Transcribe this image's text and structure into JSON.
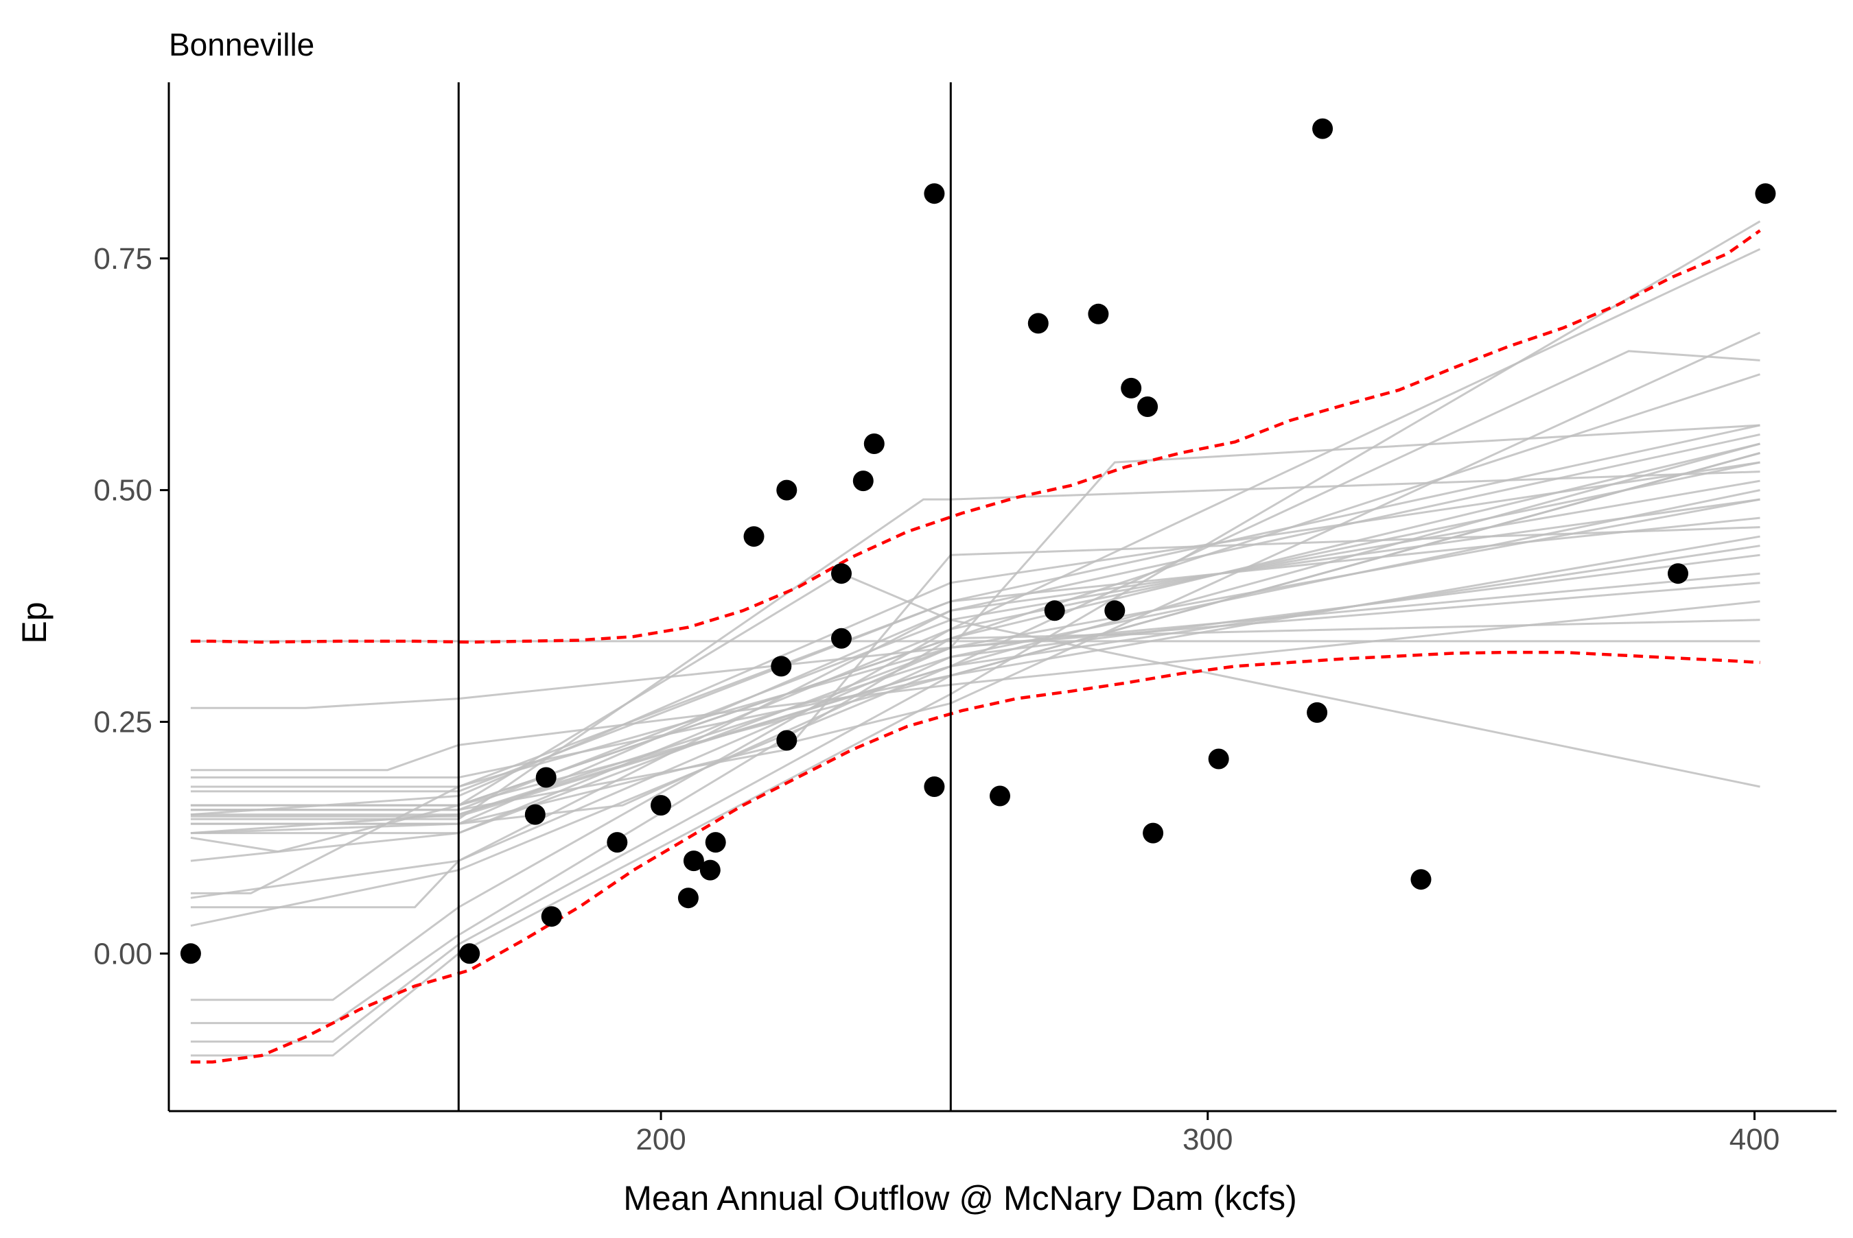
{
  "chart_data": {
    "type": "scatter",
    "title": "Bonneville",
    "xlabel": "Mean Annual Outflow @ McNary Dam (kcfs)",
    "ylabel": "Ep",
    "xlim": [
      110,
      415
    ],
    "ylim": [
      -0.17,
      0.94
    ],
    "x_ticks": [
      200,
      300,
      400
    ],
    "x_tick_labels": [
      "200",
      "300",
      "400"
    ],
    "y_ticks": [
      0,
      0.25,
      0.5,
      0.75
    ],
    "y_tick_labels": [
      "0.00",
      "0.25",
      "0.50",
      "0.75"
    ],
    "grid": false,
    "vlines": [
      163,
      253
    ],
    "points": [
      {
        "x": 114,
        "y": 0.0
      },
      {
        "x": 165,
        "y": 0.0
      },
      {
        "x": 177,
        "y": 0.15
      },
      {
        "x": 179,
        "y": 0.19
      },
      {
        "x": 180,
        "y": 0.04
      },
      {
        "x": 192,
        "y": 0.12
      },
      {
        "x": 200,
        "y": 0.16
      },
      {
        "x": 205,
        "y": 0.06
      },
      {
        "x": 206,
        "y": 0.1
      },
      {
        "x": 209,
        "y": 0.09
      },
      {
        "x": 210,
        "y": 0.12
      },
      {
        "x": 217,
        "y": 0.45
      },
      {
        "x": 222,
        "y": 0.31
      },
      {
        "x": 223,
        "y": 0.5
      },
      {
        "x": 223,
        "y": 0.23
      },
      {
        "x": 233,
        "y": 0.41
      },
      {
        "x": 233,
        "y": 0.34
      },
      {
        "x": 237,
        "y": 0.51
      },
      {
        "x": 239,
        "y": 0.55
      },
      {
        "x": 250,
        "y": 0.82
      },
      {
        "x": 250,
        "y": 0.18
      },
      {
        "x": 262,
        "y": 0.17
      },
      {
        "x": 269,
        "y": 0.68
      },
      {
        "x": 272,
        "y": 0.37
      },
      {
        "x": 280,
        "y": 0.69
      },
      {
        "x": 283,
        "y": 0.37
      },
      {
        "x": 286,
        "y": 0.61
      },
      {
        "x": 289,
        "y": 0.59
      },
      {
        "x": 290,
        "y": 0.13
      },
      {
        "x": 302,
        "y": 0.21
      },
      {
        "x": 320,
        "y": 0.26
      },
      {
        "x": 321,
        "y": 0.89
      },
      {
        "x": 339,
        "y": 0.08
      },
      {
        "x": 386,
        "y": 0.41
      },
      {
        "x": 402,
        "y": 0.82
      }
    ],
    "bounds": {
      "upper": {
        "x": [
          114,
          118,
          127,
          141,
          155,
          165,
          175,
          185,
          195,
          205,
          215,
          225,
          235,
          245,
          255,
          265,
          275,
          285,
          295,
          305,
          315,
          325,
          335,
          345,
          355,
          365,
          375,
          385,
          395,
          401
        ],
        "y": [
          0.337,
          0.337,
          0.336,
          0.337,
          0.337,
          0.336,
          0.337,
          0.338,
          0.342,
          0.352,
          0.37,
          0.395,
          0.428,
          0.455,
          0.475,
          0.492,
          0.505,
          0.525,
          0.54,
          0.552,
          0.575,
          0.592,
          0.608,
          0.632,
          0.655,
          0.675,
          0.7,
          0.73,
          0.755,
          0.78
        ]
      },
      "lower": {
        "x": [
          114,
          118,
          127,
          135,
          145,
          155,
          165,
          175,
          185,
          195,
          205,
          215,
          225,
          235,
          245,
          255,
          265,
          275,
          285,
          295,
          305,
          315,
          325,
          335,
          345,
          355,
          365,
          375,
          385,
          395,
          401
        ],
        "y": [
          -0.117,
          -0.117,
          -0.11,
          -0.09,
          -0.06,
          -0.035,
          -0.018,
          0.015,
          0.05,
          0.09,
          0.125,
          0.16,
          0.19,
          0.22,
          0.245,
          0.262,
          0.275,
          0.283,
          0.292,
          0.302,
          0.31,
          0.314,
          0.318,
          0.321,
          0.324,
          0.325,
          0.325,
          0.322,
          0.319,
          0.316,
          0.314
        ]
      }
    },
    "sim_lines": [
      {
        "x": [
          114,
          135,
          163,
          253,
          401
        ],
        "y": [
          0.265,
          0.265,
          0.275,
          0.33,
          0.4
        ]
      },
      {
        "x": [
          114,
          150,
          163,
          253,
          401
        ],
        "y": [
          0.198,
          0.198,
          0.225,
          0.29,
          0.38
        ]
      },
      {
        "x": [
          114,
          163,
          253,
          401
        ],
        "y": [
          0.19,
          0.19,
          0.3,
          0.45
        ]
      },
      {
        "x": [
          114,
          163,
          253,
          401
        ],
        "y": [
          0.18,
          0.18,
          0.33,
          0.49
        ]
      },
      {
        "x": [
          114,
          163,
          253,
          401
        ],
        "y": [
          0.16,
          0.16,
          0.34,
          0.55
        ]
      },
      {
        "x": [
          114,
          163,
          253,
          401
        ],
        "y": [
          0.155,
          0.155,
          0.36,
          0.51
        ]
      },
      {
        "x": [
          114,
          163,
          253,
          401
        ],
        "y": [
          0.148,
          0.148,
          0.31,
          0.44
        ]
      },
      {
        "x": [
          114,
          163,
          253,
          401
        ],
        "y": [
          0.14,
          0.14,
          0.37,
          0.49
        ]
      },
      {
        "x": [
          114,
          163,
          253,
          401
        ],
        "y": [
          0.13,
          0.13,
          0.33,
          0.41
        ]
      },
      {
        "x": [
          114,
          130,
          163,
          253,
          401
        ],
        "y": [
          0.125,
          0.11,
          0.16,
          0.3,
          0.54
        ]
      },
      {
        "x": [
          114,
          125,
          163,
          253,
          401
        ],
        "y": [
          0.065,
          0.065,
          0.18,
          0.38,
          0.57
        ]
      },
      {
        "x": [
          114,
          155,
          163,
          253,
          401
        ],
        "y": [
          0.05,
          0.05,
          0.1,
          0.37,
          0.56
        ]
      },
      {
        "x": [
          114,
          163,
          253,
          401
        ],
        "y": [
          0.03,
          0.09,
          0.31,
          0.55
        ]
      },
      {
        "x": [
          114,
          140,
          163,
          253,
          401
        ],
        "y": [
          -0.05,
          -0.05,
          0.05,
          0.35,
          0.53
        ]
      },
      {
        "x": [
          114,
          140,
          163,
          253,
          401
        ],
        "y": [
          -0.075,
          -0.075,
          0.02,
          0.34,
          0.625
        ]
      },
      {
        "x": [
          114,
          140,
          163,
          253,
          401
        ],
        "y": [
          -0.095,
          -0.095,
          0.01,
          0.3,
          0.54
        ]
      },
      {
        "x": [
          114,
          140,
          163,
          253,
          401
        ],
        "y": [
          -0.11,
          -0.11,
          0.0,
          0.28,
          0.79
        ]
      },
      {
        "x": [
          114,
          163,
          253,
          401
        ],
        "y": [
          0.13,
          0.14,
          0.27,
          0.67
        ]
      },
      {
        "x": [
          114,
          163,
          253,
          401
        ],
        "y": [
          0.16,
          0.16,
          0.34,
          0.36
        ]
      },
      {
        "x": [
          114,
          163,
          253,
          401
        ],
        "y": [
          0.15,
          0.15,
          0.32,
          0.43
        ]
      },
      {
        "x": [
          114,
          163,
          193,
          253,
          401
        ],
        "y": [
          0.14,
          0.14,
          0.16,
          0.32,
          0.5
        ]
      },
      {
        "x": [
          114,
          163,
          223,
          253,
          401
        ],
        "y": [
          0.155,
          0.155,
          0.22,
          0.43,
          0.46
        ]
      },
      {
        "x": [
          114,
          163,
          233,
          401
        ],
        "y": [
          0.337,
          0.337,
          0.337,
          0.337
        ]
      },
      {
        "x": [
          114,
          163,
          233,
          253,
          401
        ],
        "y": [
          0.16,
          0.16,
          0.41,
          0.36,
          0.18
        ]
      },
      {
        "x": [
          114,
          163,
          248,
          253,
          401
        ],
        "y": [
          0.145,
          0.145,
          0.49,
          0.49,
          0.52
        ]
      },
      {
        "x": [
          114,
          163,
          253,
          283,
          401
        ],
        "y": [
          0.06,
          0.1,
          0.33,
          0.53,
          0.57
        ]
      },
      {
        "x": [
          114,
          163,
          253,
          377,
          401
        ],
        "y": [
          0.13,
          0.15,
          0.31,
          0.65,
          0.64
        ]
      },
      {
        "x": [
          114,
          163,
          253,
          401
        ],
        "y": [
          0.1,
          0.13,
          0.35,
          0.76
        ]
      },
      {
        "x": [
          114,
          163,
          253,
          401
        ],
        "y": [
          0.15,
          0.17,
          0.4,
          0.53
        ]
      },
      {
        "x": [
          114,
          163,
          253,
          401
        ],
        "y": [
          0.175,
          0.175,
          0.38,
          0.47
        ]
      }
    ],
    "colors": {
      "points": "#000000",
      "sim_lines": "#bebebe",
      "bounds": "#ff0000",
      "vlines": "#000000",
      "axis": "#000000"
    }
  }
}
